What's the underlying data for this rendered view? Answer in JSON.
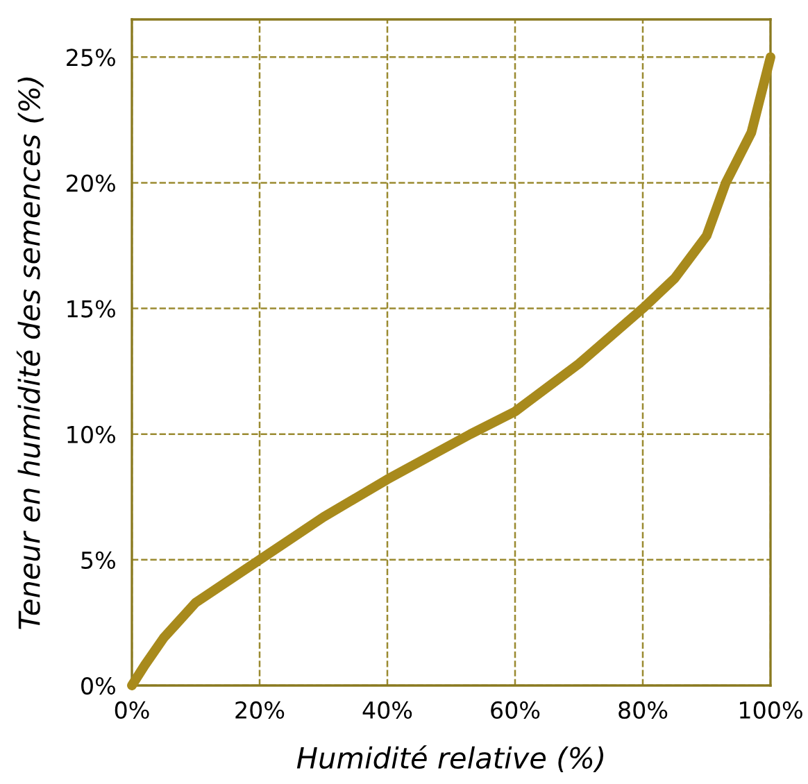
{
  "chart_data": {
    "type": "line",
    "xlabel": "Humidité relative (%)",
    "ylabel": "Teneur en humidité des semences (%)",
    "x": [
      0,
      2,
      5,
      10,
      20,
      30,
      40,
      53,
      60,
      70,
      80,
      85,
      90,
      93,
      97,
      100
    ],
    "series": [
      {
        "color": "#a88a1c",
        "values": [
          0,
          0.8,
          1.9,
          3.3,
          5,
          6.7,
          8.2,
          10,
          10.9,
          12.8,
          15,
          16.2,
          17.9,
          20,
          22,
          25
        ]
      }
    ],
    "xlim": [
      0,
      100
    ],
    "ylim": [
      0,
      26.5
    ],
    "xticks": [
      {
        "value": 0,
        "label": "0%"
      },
      {
        "value": 20,
        "label": "20%"
      },
      {
        "value": 40,
        "label": "40%"
      },
      {
        "value": 60,
        "label": "60%"
      },
      {
        "value": 80,
        "label": "80%"
      },
      {
        "value": 100,
        "label": "100%"
      }
    ],
    "yticks": [
      {
        "value": 0,
        "label": "0%"
      },
      {
        "value": 5,
        "label": "5%"
      },
      {
        "value": 10,
        "label": "10%"
      },
      {
        "value": 15,
        "label": "15%"
      },
      {
        "value": 20,
        "label": "20%"
      },
      {
        "value": 25,
        "label": "25%"
      }
    ],
    "grid": true,
    "line_style": "solid",
    "marker": "none"
  }
}
